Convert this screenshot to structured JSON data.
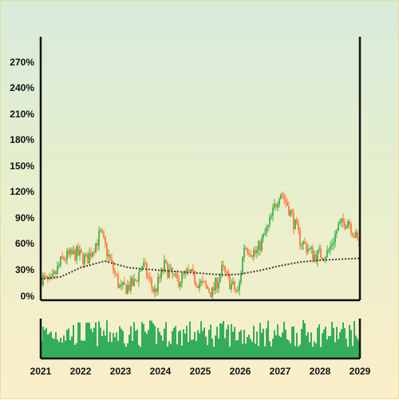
{
  "chart_data": {
    "type": "candlestick-with-volume",
    "title": "",
    "xlabel": "",
    "ylabel": "",
    "y_axis": {
      "ylim": [
        -3,
        280
      ],
      "ticks": [
        0,
        30,
        60,
        90,
        120,
        150,
        180,
        210,
        240,
        270
      ],
      "tick_labels": [
        "0%",
        "30%",
        "60%",
        "90%",
        "120%",
        "150%",
        "180%",
        "210%",
        "240%",
        "270%"
      ]
    },
    "x_axis": {
      "xlim": [
        2021,
        2029
      ],
      "ticks": [
        2021,
        2022,
        2023,
        2024,
        2025,
        2026,
        2027,
        2028,
        2029
      ],
      "tick_labels": [
        "2021",
        "2022",
        "2023",
        "2024",
        "2025",
        "2026",
        "2027",
        "2028",
        "2029"
      ]
    },
    "price_anchors": [
      {
        "x": 2021.0,
        "y": 22
      },
      {
        "x": 2021.25,
        "y": 14
      },
      {
        "x": 2021.55,
        "y": 42
      },
      {
        "x": 2021.9,
        "y": 47
      },
      {
        "x": 2022.15,
        "y": 40
      },
      {
        "x": 2022.5,
        "y": 68
      },
      {
        "x": 2022.7,
        "y": 44
      },
      {
        "x": 2023.0,
        "y": 8
      },
      {
        "x": 2023.35,
        "y": 15
      },
      {
        "x": 2023.55,
        "y": 36
      },
      {
        "x": 2023.85,
        "y": 5
      },
      {
        "x": 2024.1,
        "y": 34
      },
      {
        "x": 2024.4,
        "y": 17
      },
      {
        "x": 2024.7,
        "y": 26
      },
      {
        "x": 2025.0,
        "y": 15
      },
      {
        "x": 2025.3,
        "y": 5
      },
      {
        "x": 2025.55,
        "y": 30
      },
      {
        "x": 2025.8,
        "y": 12
      },
      {
        "x": 2025.95,
        "y": 4
      },
      {
        "x": 2026.1,
        "y": 56
      },
      {
        "x": 2026.4,
        "y": 47
      },
      {
        "x": 2026.7,
        "y": 75
      },
      {
        "x": 2027.0,
        "y": 115
      },
      {
        "x": 2027.2,
        "y": 98
      },
      {
        "x": 2027.5,
        "y": 62
      },
      {
        "x": 2027.85,
        "y": 45
      },
      {
        "x": 2028.2,
        "y": 48
      },
      {
        "x": 2028.45,
        "y": 75
      },
      {
        "x": 2028.7,
        "y": 84
      },
      {
        "x": 2028.9,
        "y": 64
      },
      {
        "x": 2029.0,
        "y": 55
      }
    ],
    "moving_average_anchors": [
      {
        "x": 2021.0,
        "y": 20
      },
      {
        "x": 2021.5,
        "y": 22
      },
      {
        "x": 2022.0,
        "y": 32
      },
      {
        "x": 2022.6,
        "y": 39
      },
      {
        "x": 2023.2,
        "y": 32
      },
      {
        "x": 2024.0,
        "y": 29
      },
      {
        "x": 2025.0,
        "y": 26
      },
      {
        "x": 2025.6,
        "y": 24
      },
      {
        "x": 2026.0,
        "y": 25
      },
      {
        "x": 2026.5,
        "y": 29
      },
      {
        "x": 2027.0,
        "y": 34
      },
      {
        "x": 2027.5,
        "y": 38
      },
      {
        "x": 2028.0,
        "y": 40
      },
      {
        "x": 2028.5,
        "y": 41
      },
      {
        "x": 2029.0,
        "y": 42
      }
    ],
    "volume": {
      "min": 0.3,
      "max": 1.0
    },
    "colors": {
      "up": "#3cb44b",
      "down": "#ff7a3d",
      "volume": "#1fa64f",
      "moving_average": "#4a3b33",
      "axis": "#111111"
    },
    "grid": false,
    "legend": "none"
  }
}
